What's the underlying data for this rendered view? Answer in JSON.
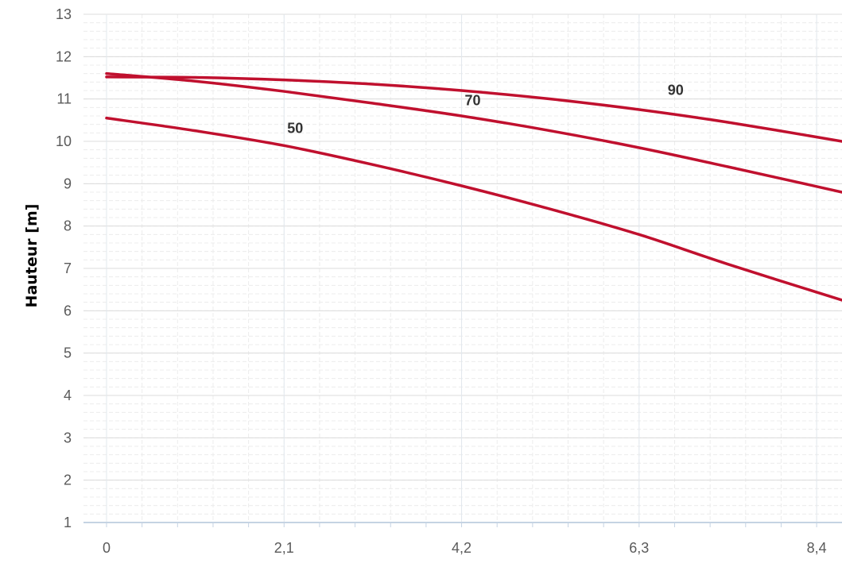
{
  "chart_data": {
    "type": "line",
    "ylabel": "Hauteur [m]",
    "xlabel": "",
    "xlim": [
      0,
      8.7
    ],
    "ylim": [
      1,
      13
    ],
    "x_ticks": [
      {
        "value": 0,
        "label": "0"
      },
      {
        "value": 2.1,
        "label": "2,1"
      },
      {
        "value": 4.2,
        "label": "4,2"
      },
      {
        "value": 6.3,
        "label": "6,3"
      },
      {
        "value": 8.4,
        "label": "8,4"
      }
    ],
    "y_ticks": [
      {
        "value": 1,
        "label": "1"
      },
      {
        "value": 2,
        "label": "2"
      },
      {
        "value": 3,
        "label": "3"
      },
      {
        "value": 4,
        "label": "4"
      },
      {
        "value": 5,
        "label": "5"
      },
      {
        "value": 6,
        "label": "6"
      },
      {
        "value": 7,
        "label": "7"
      },
      {
        "value": 8,
        "label": "8"
      },
      {
        "value": 9,
        "label": "9"
      },
      {
        "value": 10,
        "label": "10"
      },
      {
        "value": 11,
        "label": "11"
      },
      {
        "value": 12,
        "label": "12"
      },
      {
        "value": 13,
        "label": "13"
      }
    ],
    "grid": true,
    "line_color": "#c0102e",
    "series": [
      {
        "name": "50",
        "label_at": [
          2.1,
          10.2
        ],
        "x": [
          0,
          1.05,
          2.1,
          3.15,
          4.2,
          5.25,
          6.3,
          7.35,
          8.7
        ],
        "y": [
          10.55,
          10.25,
          9.9,
          9.45,
          8.95,
          8.4,
          7.8,
          7.1,
          6.25
        ]
      },
      {
        "name": "70",
        "label_at": [
          4.2,
          10.85
        ],
        "x": [
          0,
          1.05,
          2.1,
          3.15,
          4.2,
          5.25,
          6.3,
          7.35,
          8.7
        ],
        "y": [
          11.6,
          11.42,
          11.18,
          10.9,
          10.6,
          10.25,
          9.85,
          9.4,
          8.8
        ]
      },
      {
        "name": "90",
        "label_at": [
          6.6,
          11.1
        ],
        "x": [
          0,
          1.05,
          2.1,
          3.15,
          4.2,
          5.25,
          6.3,
          7.35,
          8.7
        ],
        "y": [
          11.52,
          11.51,
          11.45,
          11.35,
          11.2,
          11.0,
          10.75,
          10.45,
          10.0
        ]
      }
    ]
  }
}
